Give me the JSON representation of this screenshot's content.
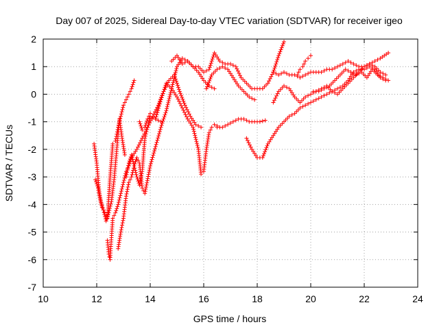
{
  "chart_data": {
    "type": "scatter",
    "title": "Day 007 of 2025, Sidereal Day-to-day VTEC variation (SDTVAR) for receiver igeo",
    "xlabel": "GPS time / hours",
    "ylabel": "SDTVAR / TECUs",
    "xlim": [
      10,
      24
    ],
    "ylim": [
      -7,
      2
    ],
    "xticks": [
      "10",
      "12",
      "14",
      "16",
      "18",
      "20",
      "22",
      "24"
    ],
    "yticks": [
      "-7",
      "-6",
      "-5",
      "-4",
      "-3",
      "-2",
      "-1",
      "0",
      "1",
      "2"
    ],
    "grid": true,
    "legend": "none",
    "marker": "plus",
    "color": "#ff0000",
    "series": [
      {
        "x": [
          11.9,
          12.0,
          12.1,
          12.2,
          12.3,
          12.4,
          12.5,
          12.6,
          12.7,
          12.8,
          12.9,
          13.0,
          13.1,
          13.2,
          13.3,
          13.4
        ],
        "y": [
          -1.8,
          -2.5,
          -3.6,
          -4.1,
          -4.3,
          -4.5,
          -3.0,
          -1.8,
          -1.7,
          -1.2,
          -0.8,
          -0.4,
          -0.2,
          0.0,
          0.2,
          0.5
        ]
      },
      {
        "x": [
          11.95,
          12.05,
          12.15,
          12.25,
          12.35,
          12.45,
          12.55,
          12.65,
          12.75,
          12.85,
          12.95,
          13.05
        ],
        "y": [
          -3.1,
          -3.4,
          -3.9,
          -4.2,
          -4.6,
          -4.3,
          -3.9,
          -3.1,
          -2.0,
          -0.9,
          -1.6,
          -2.2
        ]
      },
      {
        "x": [
          12.4,
          12.45,
          12.5,
          12.55,
          12.6,
          12.7,
          12.8,
          12.9,
          13.0,
          13.1,
          13.2,
          13.3,
          13.5,
          13.7,
          13.9,
          14.1,
          14.3,
          14.5,
          14.7,
          14.9,
          15.1,
          15.3,
          15.5,
          15.7,
          15.9
        ],
        "y": [
          -5.3,
          -5.8,
          -6.0,
          -5.2,
          -4.5,
          -4.3,
          -4.0,
          -3.6,
          -3.2,
          -2.8,
          -2.6,
          -2.3,
          -2.0,
          -1.6,
          -1.2,
          -0.8,
          -0.4,
          0.1,
          0.5,
          0.7,
          0.1,
          -0.4,
          -0.8,
          -1.1,
          -1.2
        ]
      },
      {
        "x": [
          12.8,
          12.9,
          13.0,
          13.1,
          13.2,
          13.3,
          13.4,
          13.5,
          13.6,
          13.7,
          13.8,
          14.0,
          14.2,
          14.4,
          14.6,
          14.8,
          15.0,
          15.2,
          15.4,
          15.6,
          15.8,
          16.0,
          16.2,
          16.4
        ],
        "y": [
          -5.6,
          -5.0,
          -4.5,
          -3.7,
          -3.2,
          -3.0,
          -2.6,
          -2.3,
          -2.5,
          -3.4,
          -3.6,
          -2.6,
          -1.9,
          -1.2,
          -0.6,
          0.2,
          1.0,
          1.3,
          1.2,
          1.0,
          0.8,
          0.5,
          0.3,
          0.2
        ]
      },
      {
        "x": [
          13.1,
          13.2,
          13.3,
          13.4,
          13.5,
          13.6,
          13.7,
          13.8,
          13.9,
          14.0,
          14.2,
          14.4,
          14.6,
          14.8,
          15.0,
          15.2,
          15.4,
          15.6,
          15.8,
          15.9,
          16.0,
          16.1,
          16.2,
          16.3,
          16.4,
          16.5
        ],
        "y": [
          -3.0,
          -2.5,
          -2.2,
          -2.6,
          -3.0,
          -3.3,
          -2.8,
          -1.6,
          -1.2,
          -0.8,
          -0.9,
          -0.2,
          0.4,
          0.2,
          -0.1,
          -0.5,
          -0.9,
          -1.2,
          -2.0,
          -2.9,
          -2.8,
          -2.0,
          -1.4,
          -1.2,
          -1.1,
          -1.15
        ]
      },
      {
        "x": [
          13.6,
          13.7,
          13.8,
          13.9,
          14.0,
          14.1,
          14.2,
          14.3,
          14.4
        ],
        "y": [
          -1.0,
          -1.3,
          -1.2,
          -0.9,
          -0.7,
          -0.8,
          -0.9,
          -0.95,
          -1.0
        ]
      },
      {
        "x": [
          14.8,
          15.0,
          15.2,
          15.4,
          15.6,
          15.8,
          16.0,
          16.2,
          16.4,
          16.6,
          16.8,
          17.0,
          17.2,
          17.4,
          17.6,
          17.8,
          18.0,
          18.2,
          18.4,
          18.6,
          18.8,
          19.0
        ],
        "y": [
          1.2,
          1.4,
          1.1,
          1.2,
          1.0,
          1.0,
          0.8,
          0.9,
          1.5,
          1.2,
          1.1,
          1.1,
          1.0,
          0.6,
          0.4,
          0.2,
          0.2,
          0.2,
          0.4,
          0.8,
          1.4,
          1.9
        ]
      },
      {
        "x": [
          16.1,
          16.3,
          16.5,
          16.7,
          16.9,
          17.1,
          17.3,
          17.5,
          17.7,
          17.9
        ],
        "y": [
          0.2,
          0.7,
          0.9,
          1.0,
          0.9,
          0.6,
          0.3,
          0.1,
          -0.1,
          -0.2
        ]
      },
      {
        "x": [
          16.5,
          16.7,
          16.9,
          17.1,
          17.3,
          17.5,
          17.7,
          17.9,
          18.1,
          18.3
        ],
        "y": [
          -1.2,
          -1.2,
          -1.1,
          -1.0,
          -0.9,
          -0.9,
          -1.0,
          -1.0,
          -1.0,
          -0.95
        ]
      },
      {
        "x": [
          17.6,
          17.8,
          18.0,
          18.2,
          18.4,
          18.6,
          18.8,
          19.0,
          19.2,
          19.4,
          19.6,
          19.8,
          20.0,
          20.2,
          20.4,
          20.6,
          20.8,
          21.0,
          21.2,
          21.4,
          21.6,
          21.8,
          22.0,
          22.2,
          22.4,
          22.6,
          22.8
        ],
        "y": [
          -1.6,
          -2.0,
          -2.3,
          -2.3,
          -1.8,
          -1.5,
          -1.2,
          -1.0,
          -0.8,
          -0.7,
          -0.5,
          -0.4,
          -0.3,
          -0.2,
          -0.1,
          0.0,
          0.1,
          0.2,
          0.3,
          0.5,
          0.8,
          0.9,
          0.9,
          1.0,
          0.9,
          0.6,
          0.5
        ]
      },
      {
        "x": [
          18.6,
          18.8,
          19.0,
          19.2,
          19.4,
          19.6,
          19.8,
          20.0,
          20.2,
          20.4,
          20.6,
          20.8,
          21.0,
          21.2,
          21.4,
          21.6,
          21.8,
          22.0,
          22.2,
          22.4,
          22.6,
          22.8
        ],
        "y": [
          -0.3,
          0.1,
          0.3,
          0.2,
          -0.1,
          -0.3,
          -0.1,
          0.0,
          0.1,
          0.2,
          0.3,
          0.1,
          0.0,
          0.2,
          0.4,
          0.6,
          0.8,
          1.0,
          1.1,
          1.0,
          0.8,
          0.7
        ]
      },
      {
        "x": [
          18.6,
          18.8,
          19.0,
          19.2,
          19.4,
          19.6,
          19.8,
          20.0,
          20.2,
          20.4,
          20.6,
          20.8,
          21.0,
          21.2,
          21.4,
          21.6,
          21.8,
          22.0,
          22.2,
          22.4,
          22.6,
          22.9
        ],
        "y": [
          0.8,
          0.7,
          0.8,
          0.7,
          0.7,
          0.6,
          0.7,
          0.8,
          0.8,
          0.8,
          0.9,
          0.9,
          1.0,
          1.1,
          1.2,
          1.1,
          1.0,
          1.0,
          1.1,
          1.2,
          1.3,
          1.5
        ]
      },
      {
        "x": [
          19.5,
          19.6,
          19.7,
          19.8,
          19.9,
          20.0
        ],
        "y": [
          0.7,
          0.9,
          1.0,
          1.2,
          1.3,
          1.4
        ]
      },
      {
        "x": [
          20.1,
          20.3,
          20.5,
          20.7,
          20.9,
          21.1,
          21.3,
          21.5,
          21.7,
          21.9,
          22.1,
          22.3,
          22.5,
          22.7,
          22.9
        ],
        "y": [
          0.1,
          0.1,
          0.2,
          0.3,
          0.5,
          0.7,
          0.9,
          0.8,
          0.7,
          0.8,
          0.6,
          0.9,
          0.7,
          0.6,
          0.5
        ]
      }
    ]
  }
}
